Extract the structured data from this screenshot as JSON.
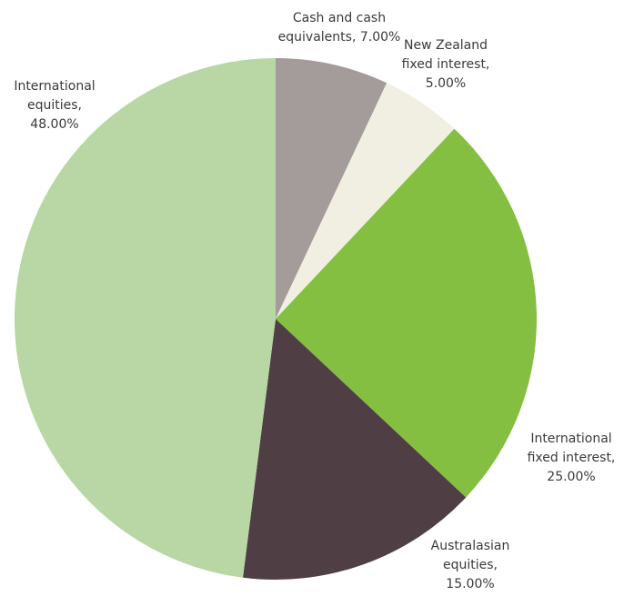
{
  "chart_data": {
    "type": "pie",
    "title": "",
    "start_angle_deg": 0,
    "direction": "clockwise",
    "slices": [
      {
        "label": "Cash and cash equivalents",
        "value": 7.0,
        "value_text": "7.00%",
        "color": "#a49b9b",
        "label_lines": [
          "Cash and cash",
          "equivalents, 7.00%"
        ]
      },
      {
        "label": "New Zealand fixed interest",
        "value": 5.0,
        "value_text": "5.00%",
        "color": "#f1efe1",
        "label_lines": [
          "New Zealand",
          "fixed interest,",
          "5.00%"
        ]
      },
      {
        "label": "International fixed interest",
        "value": 25.0,
        "value_text": "25.00%",
        "color": "#84bf41",
        "label_lines": [
          "International",
          "fixed interest,",
          "25.00%"
        ]
      },
      {
        "label": "Australasian equities",
        "value": 15.0,
        "value_text": "15.00%",
        "color": "#4f3f44",
        "label_lines": [
          "Australasian",
          "equities,",
          "15.00%"
        ]
      },
      {
        "label": "International equities",
        "value": 48.0,
        "value_text": "48.00%",
        "color": "#b8d7a5",
        "label_lines": [
          "International",
          "equities,",
          "48.00%"
        ]
      }
    ]
  }
}
